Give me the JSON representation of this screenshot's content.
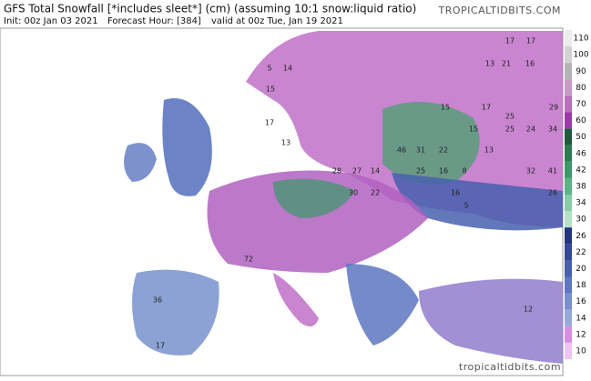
{
  "header": {
    "title": "GFS Total Snowfall [*includes sleet*] (cm) (assuming 10:1 snow:liquid ratio)",
    "init": "Init: 00z Jan 03 2021",
    "forecast_hour": "Forecast Hour: [384]",
    "valid": "valid at 00z Tue, Jan 19 2021",
    "watermark": "TROPICALTIDBITS.COM"
  },
  "colorbar": {
    "levels": [
      110,
      100,
      90,
      80,
      70,
      60,
      50,
      46,
      42,
      38,
      34,
      30,
      26,
      22,
      20,
      18,
      16,
      14,
      12,
      10
    ],
    "colors": [
      "#ececec",
      "#d2d2d2",
      "#b4b4b4",
      "#c89ac8",
      "#b870b8",
      "#9c3aa8",
      "#1e5a3c",
      "#2a7a52",
      "#3c9868",
      "#5cb485",
      "#86cca5",
      "#b4e2c8",
      "#24347e",
      "#34489a",
      "#4660ae",
      "#5c76c0",
      "#7890cc",
      "#96aad8",
      "#d88ee0",
      "#f0c4f0"
    ]
  },
  "map": {
    "labels": [
      "17",
      "17",
      "13",
      "21",
      "16",
      "15",
      "17",
      "25",
      "29",
      "15",
      "25",
      "24",
      "34",
      "46",
      "31",
      "22",
      "13",
      "28",
      "27",
      "14",
      "25",
      "16",
      "8",
      "32",
      "41",
      "30",
      "22",
      "26",
      "16",
      "5",
      "72",
      "36",
      "5",
      "14",
      "15",
      "17",
      "13",
      "12",
      "17"
    ],
    "watermark": "tropicaltidbits.com"
  }
}
